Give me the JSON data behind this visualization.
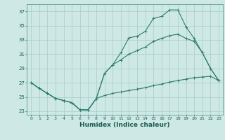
{
  "xlabel": "Humidex (Indice chaleur)",
  "bg_color": "#cde8e5",
  "line_color": "#2e7d6e",
  "grid_color": "#a8ccc8",
  "xlim": [
    -0.5,
    23.5
  ],
  "ylim": [
    22.5,
    38.0
  ],
  "yticks": [
    23,
    25,
    27,
    29,
    31,
    33,
    35,
    37
  ],
  "xticks": [
    0,
    1,
    2,
    3,
    4,
    5,
    6,
    7,
    8,
    9,
    10,
    11,
    12,
    13,
    14,
    15,
    16,
    17,
    18,
    19,
    20,
    21,
    22,
    23
  ],
  "line1_x": [
    0,
    1,
    2,
    3,
    4,
    5,
    6,
    7,
    8,
    9,
    10,
    11,
    12,
    13,
    14,
    15,
    16,
    17,
    18,
    19,
    20,
    21,
    22,
    23
  ],
  "line1_y": [
    27.0,
    26.2,
    25.5,
    24.8,
    24.5,
    24.2,
    23.2,
    23.2,
    24.8,
    28.3,
    29.5,
    31.2,
    33.3,
    33.5,
    34.2,
    36.0,
    36.3,
    37.2,
    37.2,
    34.8,
    33.2,
    31.2,
    29.0,
    27.3
  ],
  "line2_x": [
    0,
    1,
    2,
    3,
    4,
    5,
    6,
    7,
    8,
    9,
    10,
    11,
    12,
    13,
    14,
    15,
    16,
    17,
    18,
    19,
    20,
    21,
    22,
    23
  ],
  "line2_y": [
    27.0,
    26.2,
    25.5,
    24.8,
    24.5,
    24.2,
    23.2,
    23.2,
    24.8,
    25.2,
    25.5,
    25.7,
    25.9,
    26.1,
    26.3,
    26.6,
    26.8,
    27.1,
    27.3,
    27.5,
    27.7,
    27.8,
    27.9,
    27.3
  ],
  "line3_x": [
    0,
    1,
    2,
    3,
    4,
    5,
    6,
    7,
    8,
    9,
    10,
    11,
    12,
    13,
    14,
    15,
    16,
    17,
    18,
    19,
    20,
    21,
    22,
    23
  ],
  "line3_y": [
    27.0,
    26.2,
    25.5,
    24.8,
    24.5,
    24.2,
    23.2,
    23.2,
    24.8,
    28.3,
    29.5,
    30.2,
    31.0,
    31.5,
    32.0,
    32.8,
    33.2,
    33.6,
    33.8,
    33.2,
    32.8,
    31.2,
    29.0,
    27.3
  ]
}
